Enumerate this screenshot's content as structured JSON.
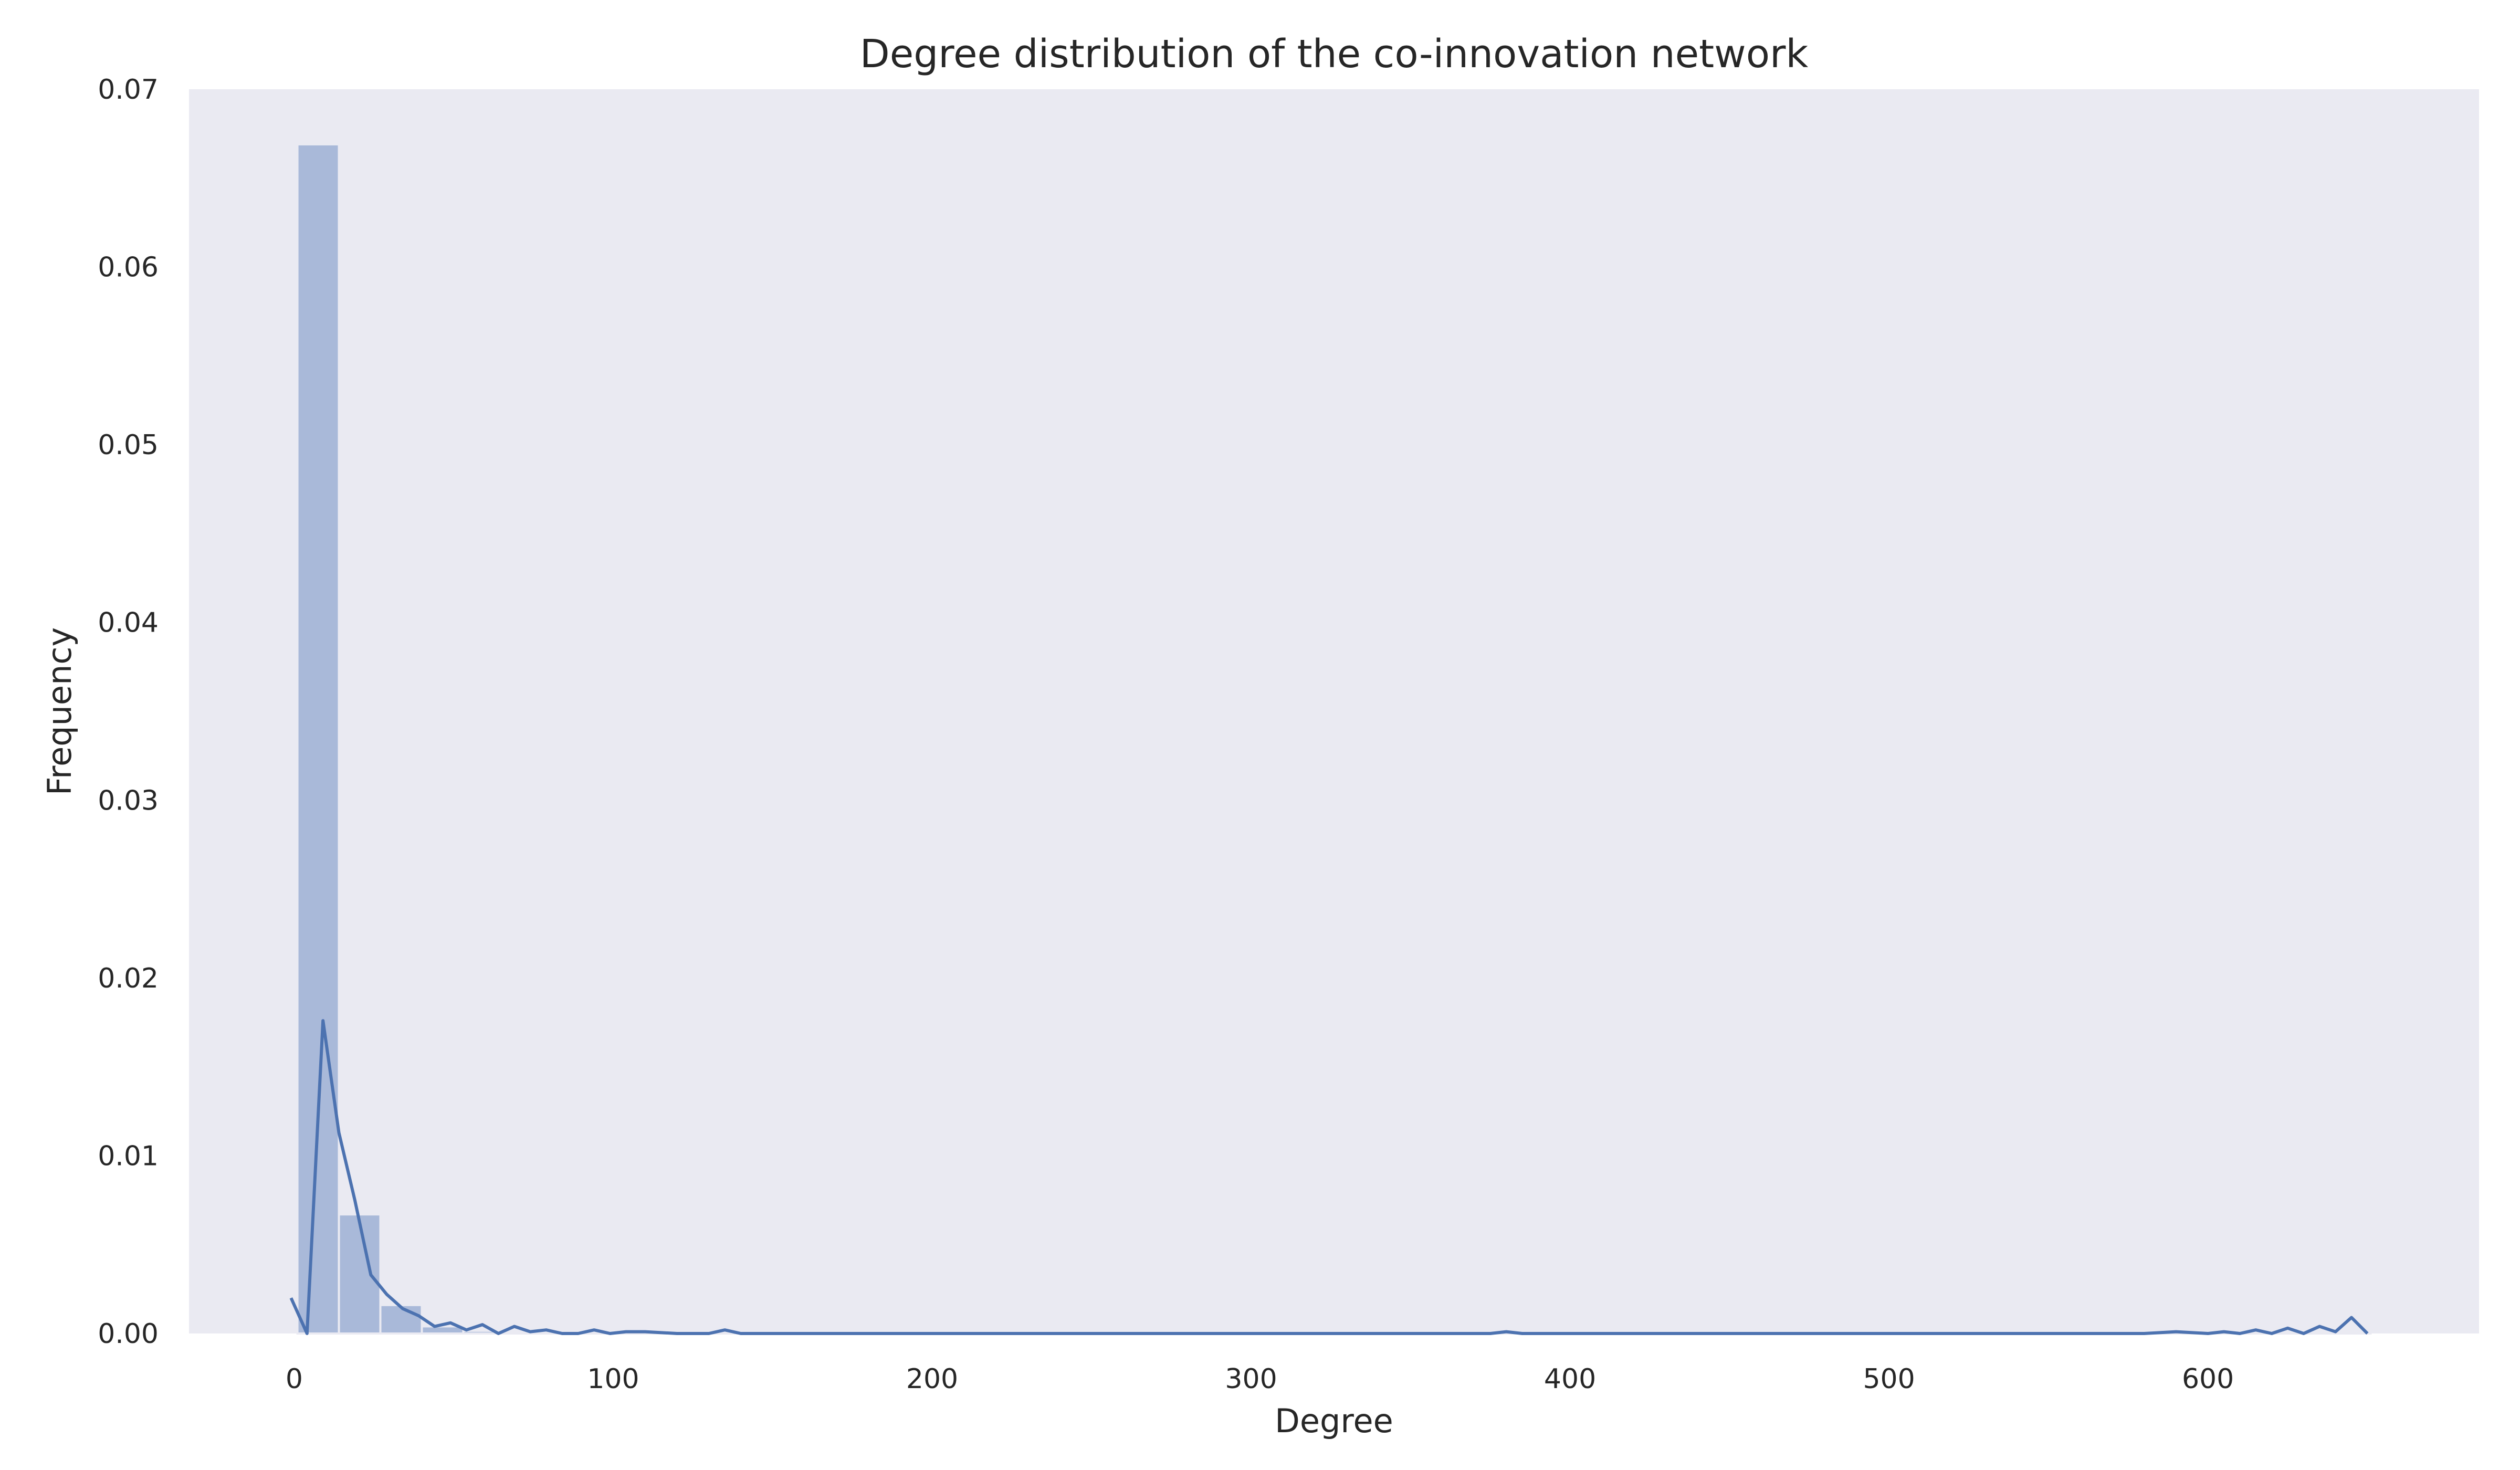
{
  "chart_data": {
    "type": "bar",
    "title": "Degree distribution of the co-innovation network",
    "xlabel": "Degree",
    "ylabel": "Frequency",
    "xlim": [
      -33,
      685
    ],
    "ylim": [
      0,
      0.07
    ],
    "grid": false,
    "xticks": [
      0,
      100,
      200,
      300,
      400,
      500,
      600
    ],
    "xtick_labels": [
      "0",
      "100",
      "200",
      "300",
      "400",
      "500",
      "600"
    ],
    "yticks": [
      0,
      0.01,
      0.02,
      0.03,
      0.04,
      0.05,
      0.06,
      0.07
    ],
    "ytick_labels": [
      "0.00",
      "0.01",
      "0.02",
      "0.03",
      "0.04",
      "0.05",
      "0.06",
      "0.07"
    ],
    "histogram": {
      "bin_edges": [
        1,
        14,
        27,
        40,
        53,
        66,
        79,
        92,
        105,
        118,
        131,
        144,
        157,
        170,
        183,
        196,
        209,
        222,
        235,
        248,
        261,
        274,
        287,
        300,
        313,
        326,
        339,
        352,
        365,
        378,
        391,
        404,
        417,
        430,
        443,
        456,
        469,
        482,
        495,
        508,
        521,
        534,
        547,
        560,
        573,
        586,
        599,
        612,
        625,
        638,
        651
      ],
      "values": [
        0.0669,
        0.0067,
        0.0016,
        0.0004,
        0.00015,
        8e-05,
        5e-05,
        4e-05,
        3e-05,
        3e-05,
        2e-05,
        2e-05,
        2e-05,
        2e-05,
        1e-05,
        1e-05,
        1e-05,
        1e-05,
        1e-05,
        1e-05,
        1e-05,
        1e-05,
        1e-05,
        1e-05,
        1e-05,
        1e-05,
        1e-05,
        1e-05,
        1e-05,
        1e-05,
        1e-05,
        1e-05,
        1e-05,
        1e-05,
        1e-05,
        1e-05,
        1e-05,
        1e-05,
        1e-05,
        1e-05,
        1e-05,
        1e-05,
        1e-05,
        1e-05,
        1e-05,
        1e-05,
        1e-05,
        1e-05,
        1e-05,
        1e-05
      ]
    },
    "density_line": {
      "x": [
        -1,
        4,
        9,
        14,
        19,
        24,
        29,
        34,
        39,
        44,
        49,
        54,
        59,
        64,
        69,
        74,
        79,
        84,
        89,
        94,
        99,
        104,
        110,
        120,
        130,
        135,
        140,
        150,
        170,
        200,
        250,
        300,
        350,
        375,
        380,
        385,
        400,
        450,
        500,
        550,
        580,
        590,
        600,
        605,
        610,
        615,
        620,
        625,
        630,
        635,
        640,
        645,
        650
      ],
      "y": [
        0.002,
        0.0,
        0.0176,
        0.0113,
        0.0075,
        0.0033,
        0.0022,
        0.0014,
        0.001,
        0.0004,
        0.0006,
        0.0002,
        0.0005,
        0.0,
        0.0004,
        0.0001,
        0.0002,
        0.0,
        0.0,
        0.0002,
        0.0,
        0.0001,
        0.0001,
        0.0,
        0.0,
        0.0002,
        0.0,
        0.0,
        0.0,
        0.0,
        0.0,
        0.0,
        0.0,
        0.0,
        0.0001,
        0.0,
        0.0,
        0.0,
        0.0,
        0.0,
        0.0,
        0.0001,
        0.0,
        0.0001,
        0.0,
        0.0002,
        0.0,
        0.0003,
        0.0,
        0.0004,
        0.0001,
        0.0009,
        0.0
      ]
    },
    "colors": {
      "background": "#eaeaf2",
      "bar_fill": "#a9b9d9",
      "bar_edge": "#eaeaf2",
      "line": "#4c72b0",
      "text": "#262626"
    }
  }
}
